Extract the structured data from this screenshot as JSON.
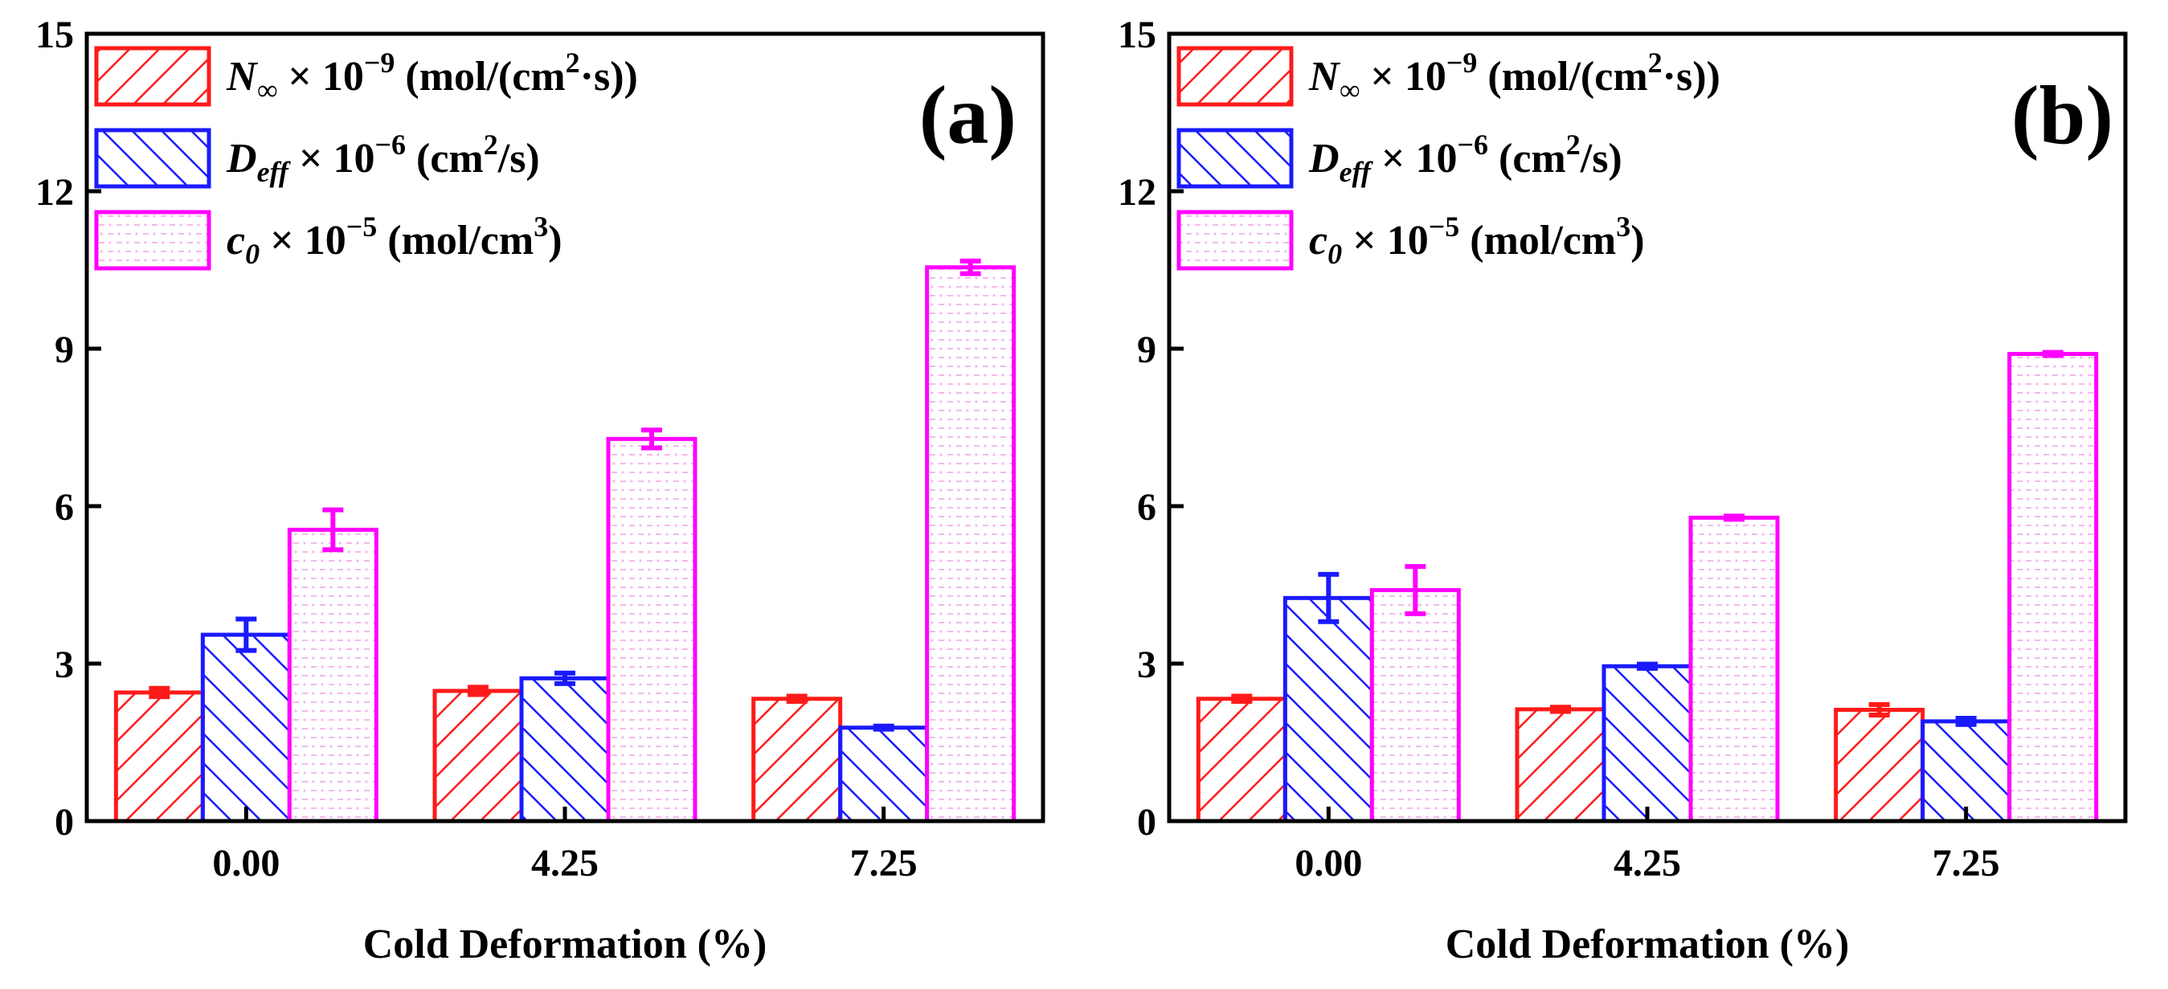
{
  "figure": {
    "xlabel": "Cold Deformation (%)",
    "colors": {
      "N": "#ff1a1a",
      "D": "#1a1aff",
      "c": "#ff00ff",
      "c_pattern": "#f4b8ee",
      "axis": "#000000"
    }
  },
  "legend": [
    {
      "key": "N",
      "symbol": "N",
      "sub": "∞",
      "mult": " × 10",
      "exp": "−9",
      "unit_pre": " (mol/(cm",
      "unit_sup": "2",
      "unit_post": "·s))"
    },
    {
      "key": "D",
      "symbol": "D",
      "sub": "eff",
      "mult": " × 10",
      "exp": "−6",
      "unit_pre": " (cm",
      "unit_sup": "2",
      "unit_post": "/s)"
    },
    {
      "key": "c",
      "symbol": "c",
      "sub": "0",
      "mult": " × 10",
      "exp": "−5",
      "unit_pre": " (mol/cm",
      "unit_sup": "3",
      "unit_post": ")"
    }
  ],
  "chart_data": [
    {
      "type": "bar",
      "label": "(a)",
      "xlabel": "Cold Deformation (%)",
      "ylabel": "",
      "categories": [
        "0.00",
        "4.25",
        "7.25"
      ],
      "ylim": [
        0,
        15
      ],
      "yticks": [
        "0",
        "3",
        "6",
        "9",
        "12",
        "15"
      ],
      "series": [
        {
          "name": "N∞ × 10−9 (mol/(cm2·s))",
          "key": "N",
          "values": [
            2.45,
            2.48,
            2.33
          ],
          "errors": [
            0.08,
            0.07,
            0.05
          ]
        },
        {
          "name": "Deff × 10−6 (cm2/s)",
          "key": "D",
          "values": [
            3.55,
            2.72,
            1.78
          ],
          "errors": [
            0.3,
            0.1,
            0.03
          ]
        },
        {
          "name": "c0 × 10−5 (mol/cm3)",
          "key": "c",
          "values": [
            5.55,
            7.28,
            10.55
          ],
          "errors": [
            0.38,
            0.17,
            0.12
          ]
        }
      ]
    },
    {
      "type": "bar",
      "label": "(b)",
      "xlabel": "Cold Deformation (%)",
      "ylabel": "",
      "categories": [
        "0.00",
        "4.25",
        "7.25"
      ],
      "ylim": [
        0,
        15
      ],
      "yticks": [
        "0",
        "3",
        "6",
        "9",
        "12",
        "15"
      ],
      "series": [
        {
          "name": "N∞ × 10−9 (mol/(cm2·s))",
          "key": "N",
          "values": [
            2.33,
            2.13,
            2.12
          ],
          "errors": [
            0.05,
            0.04,
            0.1
          ]
        },
        {
          "name": "Deff × 10−6 (cm2/s)",
          "key": "D",
          "values": [
            4.25,
            2.95,
            1.9
          ],
          "errors": [
            0.45,
            0.04,
            0.06
          ]
        },
        {
          "name": "c0 × 10−5 (mol/cm3)",
          "key": "c",
          "values": [
            4.4,
            5.78,
            8.9
          ],
          "errors": [
            0.45,
            0.03,
            0.03
          ]
        }
      ]
    }
  ]
}
